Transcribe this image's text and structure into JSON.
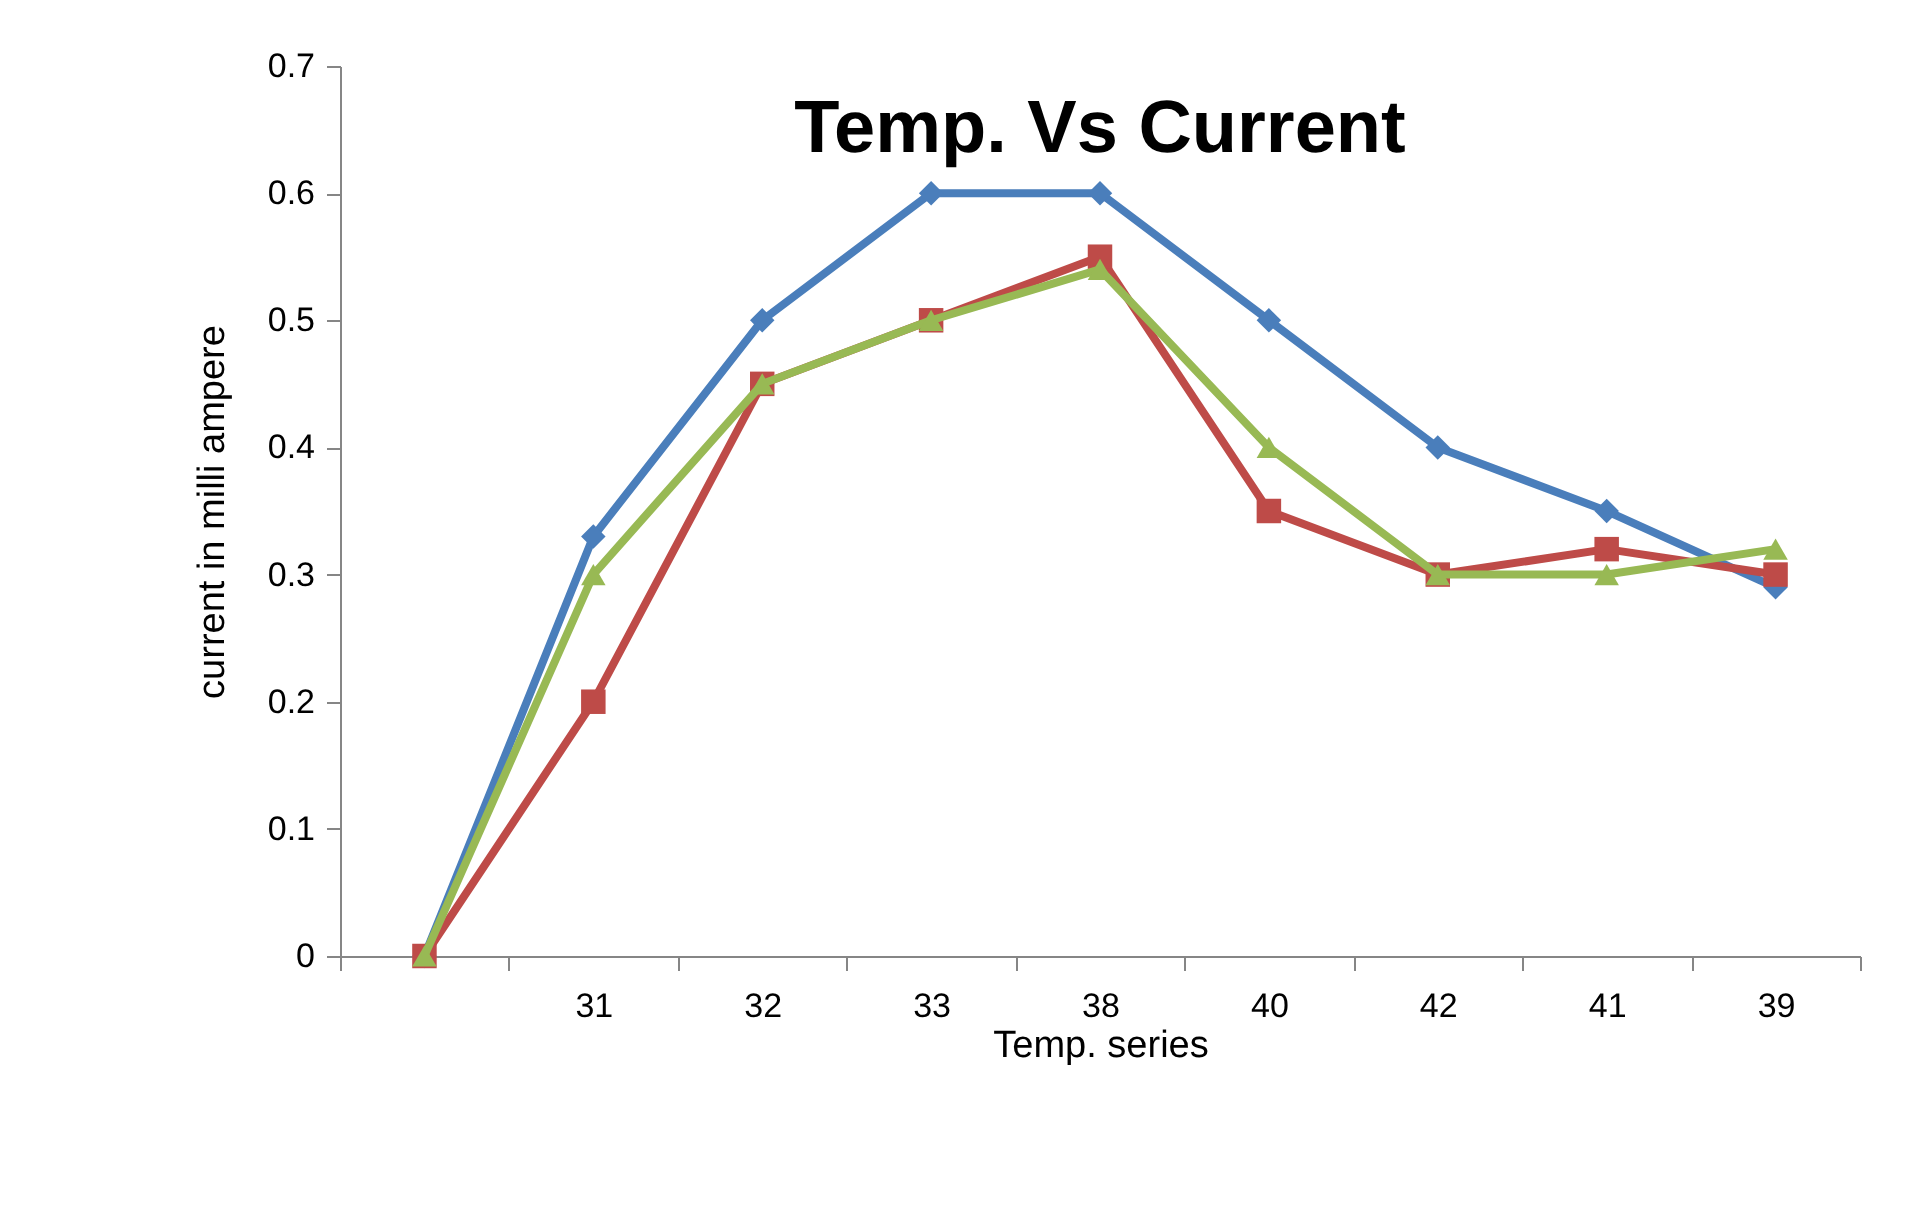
{
  "chart_data": {
    "type": "line",
    "title": "Temp. Vs  Current",
    "xlabel": "Temp. series",
    "ylabel": "current  in milli ampere",
    "categories": [
      null,
      "31",
      "32",
      "33",
      "38",
      "40",
      "42",
      "41",
      "39"
    ],
    "series": [
      {
        "color": "#4a7ebb",
        "marker": "diamond",
        "values": [
          0,
          0.33,
          0.5,
          0.6,
          0.6,
          0.5,
          0.4,
          0.35,
          0.29
        ]
      },
      {
        "color": "#be4b48",
        "marker": "square",
        "values": [
          0,
          0.2,
          0.45,
          0.5,
          0.55,
          0.35,
          0.3,
          0.32,
          0.3
        ]
      },
      {
        "color": "#98b954",
        "marker": "triangle",
        "values": [
          0,
          0.3,
          0.45,
          0.5,
          0.54,
          0.4,
          0.3,
          0.3,
          0.32
        ]
      }
    ],
    "ylim": [
      0,
      0.7
    ],
    "yticks": [
      0,
      0.1,
      0.2,
      0.3,
      0.4,
      0.5,
      0.6,
      0.7
    ],
    "grid": false,
    "line_style": "solid"
  }
}
